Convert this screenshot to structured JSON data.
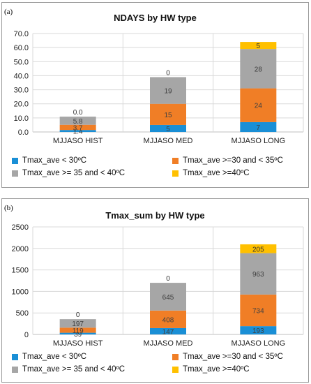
{
  "chart_data": [
    {
      "type": "bar",
      "stacked": true,
      "panel_label": "(a)",
      "title": "NDAYS by HW type",
      "categories": [
        "MJJASO HIST",
        "MJJASO MED",
        "MJJASO LONG"
      ],
      "ylim": [
        0,
        70
      ],
      "yticks": [
        "0.0",
        "10.0",
        "20.0",
        "30.0",
        "40.0",
        "50.0",
        "60.0",
        "70.0"
      ],
      "ytick_values": [
        0,
        10,
        20,
        30,
        40,
        50,
        60,
        70
      ],
      "grid": true,
      "legend_position": "bottom",
      "series": [
        {
          "name": "Tmax_ave < 30ºC",
          "color": "#1a8fd6",
          "values": [
            1.4,
            5,
            7
          ],
          "labels": [
            "1.4",
            "5",
            "7"
          ]
        },
        {
          "name": "Tmax_ave >=30 and < 35ºC",
          "color": "#f07e26",
          "values": [
            3.7,
            15,
            24
          ],
          "labels": [
            "3.7",
            "15",
            "24"
          ]
        },
        {
          "name": "Tmax_ave >= 35 and < 40ºC",
          "color": "#a6a6a6",
          "values": [
            5.8,
            19,
            28
          ],
          "labels": [
            "5.8",
            "19",
            "28"
          ]
        },
        {
          "name": "Tmax_ave >=40ºC",
          "color": "#ffc000",
          "values": [
            0.0,
            0,
            5
          ],
          "labels": [
            "0.0",
            "0",
            "5"
          ]
        }
      ]
    },
    {
      "type": "bar",
      "stacked": true,
      "panel_label": "(b)",
      "title": "Tmax_sum by HW type",
      "categories": [
        "MJJASO HIST",
        "MJJASO MED",
        "MJJASO LONG"
      ],
      "ylim": [
        0,
        2500
      ],
      "yticks": [
        "0",
        "500",
        "1000",
        "1500",
        "2000",
        "2500"
      ],
      "ytick_values": [
        0,
        500,
        1000,
        1500,
        2000,
        2500
      ],
      "grid": true,
      "legend_position": "bottom",
      "series": [
        {
          "name": "Tmax_ave < 30ºC",
          "color": "#1a8fd6",
          "values": [
            39,
            147,
            193
          ],
          "labels": [
            "39",
            "147",
            "193"
          ]
        },
        {
          "name": "Tmax_ave >=30 and < 35ºC",
          "color": "#f07e26",
          "values": [
            119,
            408,
            734
          ],
          "labels": [
            "119",
            "408",
            "734"
          ]
        },
        {
          "name": "Tmax_ave >= 35 and < 40ºC",
          "color": "#a6a6a6",
          "values": [
            197,
            645,
            963
          ],
          "labels": [
            "197",
            "645",
            "963"
          ]
        },
        {
          "name": "Tmax_ave >=40ºC",
          "color": "#ffc000",
          "values": [
            0,
            0,
            205
          ],
          "labels": [
            "0",
            "0",
            "205"
          ]
        }
      ]
    }
  ]
}
